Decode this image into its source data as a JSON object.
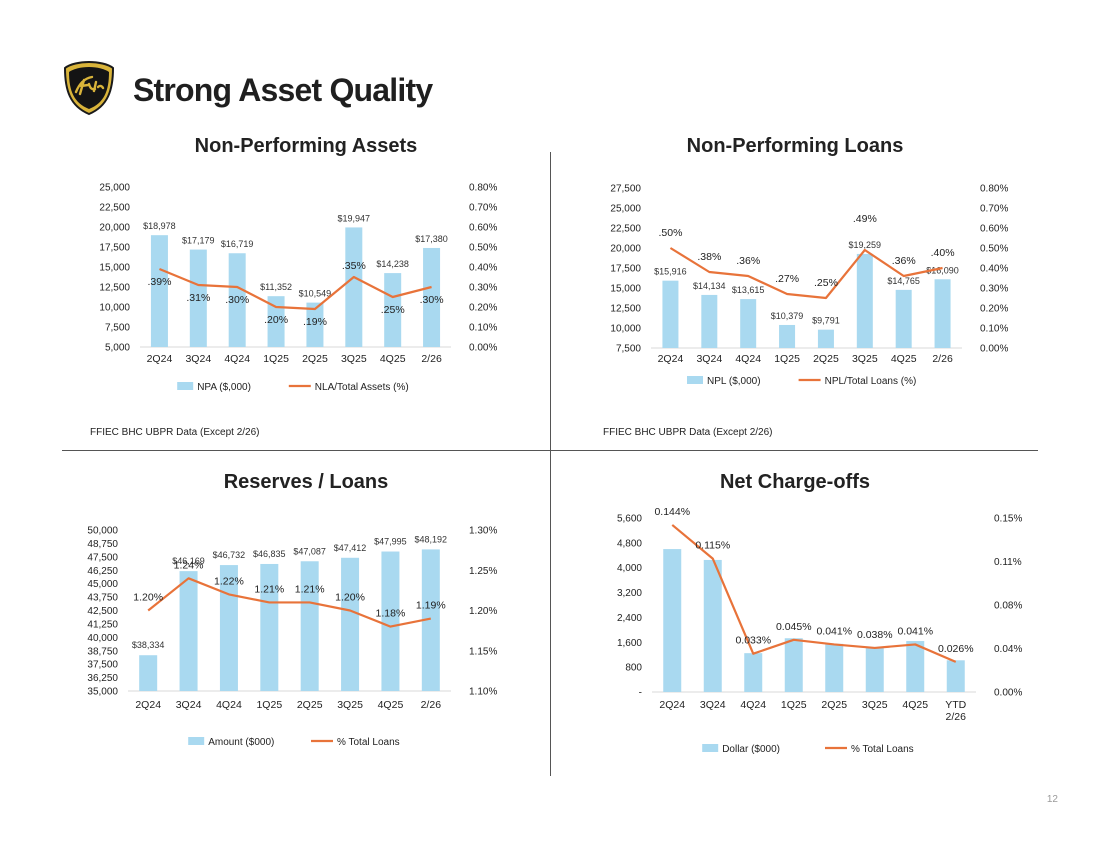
{
  "slide": {
    "title": "Strong Asset Quality",
    "page_number": "12",
    "colors": {
      "bar": "#a9d9f0",
      "line": "#e8733a",
      "divider": "#555555"
    },
    "logo_icon": "first-shield-logo"
  },
  "chart_data": [
    {
      "id": "npa",
      "type": "bar",
      "title": "Non-Performing Assets",
      "source_note": "FFIEC BHC UBPR Data (Except 2/26)",
      "categories": [
        "2Q24",
        "3Q24",
        "4Q24",
        "1Q25",
        "2Q25",
        "3Q25",
        "4Q25",
        "2/26"
      ],
      "y_left": {
        "min": 5000,
        "max": 25000,
        "ticks": [
          5000,
          7500,
          10000,
          12500,
          15000,
          17500,
          20000,
          22500,
          25000
        ],
        "tick_labels": [
          "5,000",
          "7,500",
          "10,000",
          "12,500",
          "15,000",
          "17,500",
          "20,000",
          "22,500",
          "25,000"
        ]
      },
      "y_right": {
        "min": 0,
        "max": 0.8,
        "ticks": [
          0,
          0.1,
          0.2,
          0.3,
          0.4,
          0.5,
          0.6,
          0.7,
          0.8
        ],
        "tick_labels": [
          "0.00%",
          "0.10%",
          "0.20%",
          "0.30%",
          "0.40%",
          "0.50%",
          "0.60%",
          "0.70%",
          "0.80%"
        ]
      },
      "series": [
        {
          "name": "NPA ($,000)",
          "kind": "bar",
          "axis": "left",
          "values": [
            18978,
            17179,
            16719,
            11352,
            10549,
            19947,
            14238,
            17380
          ],
          "labels": [
            "$18,978",
            "$17,179",
            "$16,719",
            "$11,352",
            "$10,549",
            "$19,947",
            "$14,238",
            "$17,380"
          ]
        },
        {
          "name": "NLA/Total Assets (%)",
          "kind": "line",
          "axis": "right",
          "values": [
            0.39,
            0.31,
            0.3,
            0.2,
            0.19,
            0.35,
            0.25,
            0.3
          ],
          "labels": [
            ".39%",
            ".31%",
            ".30%",
            ".20%",
            ".19%",
            ".35%",
            ".25%",
            ".30%"
          ]
        }
      ],
      "legend_position": "bottom",
      "grid": false
    },
    {
      "id": "npl",
      "type": "bar",
      "title": "Non-Performing Loans",
      "source_note": "FFIEC BHC UBPR Data (Except 2/26)",
      "categories": [
        "2Q24",
        "3Q24",
        "4Q24",
        "1Q25",
        "2Q25",
        "3Q25",
        "4Q25",
        "2/26"
      ],
      "y_left": {
        "min": 7500,
        "max": 27500,
        "ticks": [
          7500,
          10000,
          12500,
          15000,
          17500,
          20000,
          22500,
          25000,
          27500
        ],
        "tick_labels": [
          "7,500",
          "10,000",
          "12,500",
          "15,000",
          "17,500",
          "20,000",
          "22,500",
          "25,000",
          "27,500"
        ]
      },
      "y_right": {
        "min": 0,
        "max": 0.8,
        "ticks": [
          0,
          0.1,
          0.2,
          0.3,
          0.4,
          0.5,
          0.6,
          0.7,
          0.8
        ],
        "tick_labels": [
          "0.00%",
          "0.10%",
          "0.20%",
          "0.30%",
          "0.40%",
          "0.50%",
          "0.60%",
          "0.70%",
          "0.80%"
        ]
      },
      "series": [
        {
          "name": "NPL ($,000)",
          "kind": "bar",
          "axis": "left",
          "values": [
            15916,
            14134,
            13615,
            10379,
            9791,
            19259,
            14765,
            16090
          ],
          "labels": [
            "$15,916",
            "$14,134",
            "$13,615",
            "$10,379",
            "$9,791",
            "$19,259",
            "$14,765",
            "$16,090"
          ]
        },
        {
          "name": "NPL/Total Loans (%)",
          "kind": "line",
          "axis": "right",
          "values": [
            0.5,
            0.38,
            0.36,
            0.27,
            0.25,
            0.49,
            0.36,
            0.4
          ],
          "labels": [
            ".50%",
            ".38%",
            ".36%",
            ".27%",
            ".25%",
            ".49%",
            ".36%",
            ".40%"
          ]
        }
      ],
      "legend_position": "bottom",
      "grid": false
    },
    {
      "id": "reserves",
      "type": "bar",
      "title": "Reserves / Loans",
      "source_note": "",
      "categories": [
        "2Q24",
        "3Q24",
        "4Q24",
        "1Q25",
        "2Q25",
        "3Q25",
        "4Q25",
        "2/26"
      ],
      "y_left": {
        "min": 35000,
        "max": 50000,
        "ticks": [
          35000,
          36250,
          37500,
          38750,
          40000,
          41250,
          42500,
          43750,
          45000,
          46250,
          47500,
          48750,
          50000
        ],
        "tick_labels": [
          "35,000",
          "36,250",
          "37,500",
          "38,750",
          "40,000",
          "41,250",
          "42,500",
          "43,750",
          "45,000",
          "46,250",
          "47,500",
          "48,750",
          "50,000"
        ]
      },
      "y_right": {
        "min": 1.1,
        "max": 1.3,
        "ticks": [
          1.1,
          1.15,
          1.2,
          1.25,
          1.3
        ],
        "tick_labels": [
          "1.10%",
          "1.15%",
          "1.20%",
          "1.25%",
          "1.30%"
        ]
      },
      "series": [
        {
          "name": "Amount ($000)",
          "kind": "bar",
          "axis": "left",
          "values": [
            38334,
            46169,
            46732,
            46835,
            47087,
            47412,
            47995,
            48192
          ],
          "labels": [
            "$38,334",
            "$46,169",
            "$46,732",
            "$46,835",
            "$47,087",
            "$47,412",
            "$47,995",
            "$48,192"
          ]
        },
        {
          "name": "% Total Loans",
          "kind": "line",
          "axis": "right",
          "values": [
            1.2,
            1.24,
            1.22,
            1.21,
            1.21,
            1.2,
            1.18,
            1.19
          ],
          "labels": [
            "1.20%",
            "1.24%",
            "1.22%",
            "1.21%",
            "1.21%",
            "1.20%",
            "1.18%",
            "1.19%"
          ]
        }
      ],
      "legend_position": "bottom",
      "grid": false
    },
    {
      "id": "chargeoffs",
      "type": "bar",
      "title": "Net Charge-offs",
      "source_note": "",
      "categories": [
        "2Q24",
        "3Q24",
        "4Q24",
        "1Q25",
        "2Q25",
        "3Q25",
        "4Q25",
        "YTD 2/26"
      ],
      "y_left": {
        "min": 0,
        "max": 5600,
        "ticks": [
          0,
          800,
          1600,
          2400,
          3200,
          4000,
          4800,
          5600
        ],
        "tick_labels": [
          "-",
          "800",
          "1,600",
          "2,400",
          "3,200",
          "4,000",
          "4,800",
          "5,600"
        ]
      },
      "y_right": {
        "min": 0,
        "max": 0.15,
        "ticks": [
          0,
          0.0375,
          0.075,
          0.1125,
          0.15
        ],
        "tick_labels": [
          "0.00%",
          "0.04%",
          "0.08%",
          "0.11%",
          "0.15%"
        ]
      },
      "series": [
        {
          "name": "Dollar ($000)",
          "kind": "bar",
          "axis": "left",
          "values": [
            4600,
            4250,
            1250,
            1730,
            1550,
            1450,
            1640,
            1020
          ],
          "labels": []
        },
        {
          "name": "% Total Loans",
          "kind": "line",
          "axis": "right",
          "values": [
            0.144,
            0.115,
            0.033,
            0.045,
            0.041,
            0.038,
            0.041,
            0.026
          ],
          "labels": [
            "0.144%",
            "0.115%",
            "0.033%",
            "0.045%",
            "0.041%",
            "0.038%",
            "0.041%",
            "0.026%"
          ]
        }
      ],
      "legend_position": "bottom",
      "grid": false
    }
  ]
}
